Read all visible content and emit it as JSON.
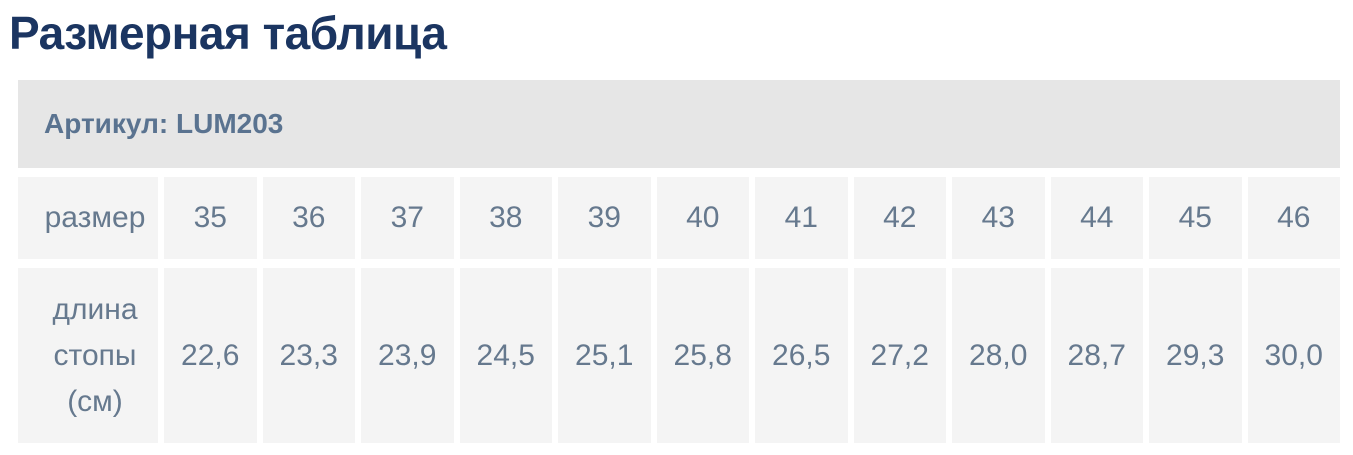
{
  "title": "Размерная таблица",
  "table": {
    "article": "Артикул: LUM203",
    "size_label": "размер",
    "length_label": "длина стопы (см)",
    "sizes": [
      "35",
      "36",
      "37",
      "38",
      "39",
      "40",
      "41",
      "42",
      "43",
      "44",
      "45",
      "46"
    ],
    "lengths": [
      "22,6",
      "23,3",
      "23,9",
      "24,5",
      "25,1",
      "25,8",
      "26,5",
      "27,2",
      "28,0",
      "28,7",
      "29,3",
      "30,0"
    ]
  },
  "colors": {
    "title_text": "#1b3561",
    "article_bar_bg": "#e6e6e6",
    "article_text": "#5a7390",
    "cell_bg": "#f4f4f4",
    "cell_text": "#66798e",
    "page_bg": "#ffffff"
  }
}
